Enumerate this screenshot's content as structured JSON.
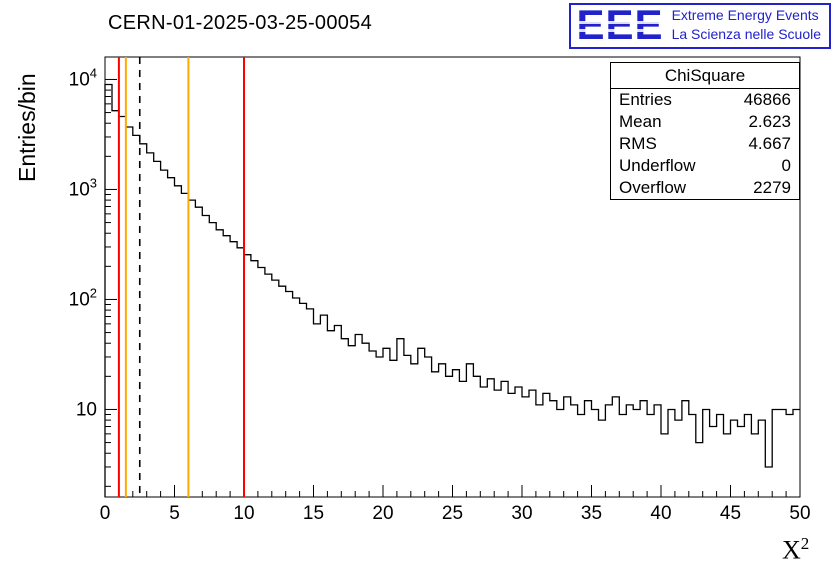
{
  "header": {
    "title": "CERN-01-2025-03-25-00054"
  },
  "logo": {
    "acronym": "EEE",
    "line1": "Extreme Energy Events",
    "line2": "La Scienza nelle Scuole",
    "color": "#2222cc"
  },
  "axes": {
    "ylabel": "Entries/bin",
    "xlabel_base": "X",
    "xlabel_sup": "2"
  },
  "stats": {
    "title": "ChiSquare",
    "rows": [
      {
        "label": "Entries",
        "value": "46866"
      },
      {
        "label": "Mean",
        "value": "2.623"
      },
      {
        "label": "RMS",
        "value": "4.667"
      },
      {
        "label": "Underflow",
        "value": "0"
      },
      {
        "label": "Overflow",
        "value": "2279"
      }
    ]
  },
  "chart_data": {
    "type": "bar",
    "subtype": "step-histogram",
    "title": "CERN-01-2025-03-25-00054",
    "xlabel": "X^2",
    "ylabel": "Entries/bin",
    "x_min": 0,
    "x_max": 50,
    "bin_width": 0.5,
    "y_scale": "log",
    "y_min": 1.6,
    "y_max": 16000,
    "grid": false,
    "legend_position": "none",
    "line_color": "#000000",
    "x_ticks": [
      0,
      5,
      10,
      15,
      20,
      25,
      30,
      35,
      40,
      45,
      50
    ],
    "y_ticks": [
      10,
      100,
      1000,
      10000
    ],
    "values": [
      9000,
      5200,
      4600,
      3700,
      3100,
      2600,
      2150,
      1800,
      1500,
      1280,
      1080,
      920,
      800,
      690,
      580,
      500,
      430,
      380,
      335,
      295,
      255,
      225,
      195,
      170,
      150,
      132,
      118,
      103,
      92,
      82,
      60,
      72,
      52,
      58,
      44,
      38,
      48,
      40,
      34,
      30,
      36,
      28,
      44,
      31,
      26,
      36,
      30,
      22,
      26,
      20,
      23,
      18,
      26,
      20,
      16,
      19,
      15,
      18,
      14,
      16,
      13,
      15,
      11,
      14,
      12,
      10,
      13,
      11,
      9,
      12,
      10,
      8,
      11,
      13,
      9,
      11,
      10,
      12,
      9,
      11,
      6,
      10,
      8,
      12,
      9,
      5,
      10,
      7,
      9,
      6,
      8,
      7,
      9,
      6,
      8,
      3,
      10,
      10,
      9,
      10
    ],
    "vlines": [
      {
        "x": 1,
        "color": "#ff0000",
        "style": "solid"
      },
      {
        "x": 1.5,
        "color": "#ffaa00",
        "style": "solid"
      },
      {
        "x": 2.5,
        "color": "#000000",
        "style": "dashed"
      },
      {
        "x": 6,
        "color": "#ffaa00",
        "style": "solid"
      },
      {
        "x": 10,
        "color": "#ff0000",
        "style": "solid"
      }
    ]
  }
}
